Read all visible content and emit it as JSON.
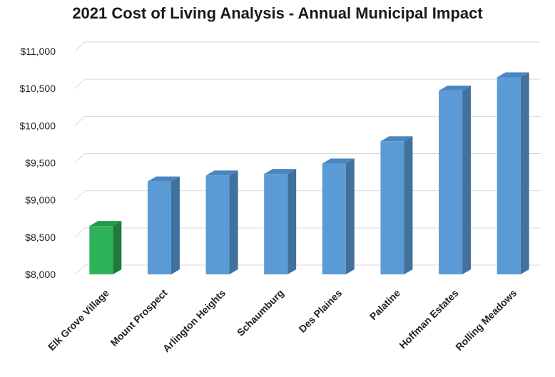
{
  "chart_data": {
    "type": "bar",
    "title": "2021 Cost of Living Analysis - Annual Municipal Impact",
    "xlabel": "",
    "ylabel": "",
    "categories": [
      "Elk Grove Village",
      "Mount Prospect",
      "Arlington Heights",
      "Schaumburg",
      "Des Plaines",
      "Palatine",
      "Hoffman Estates",
      "Rolling Meadows"
    ],
    "values": [
      8650,
      9250,
      9330,
      9350,
      9490,
      9790,
      10470,
      10650
    ],
    "ylim": [
      8000,
      11000
    ],
    "yticks": [
      8000,
      8500,
      9000,
      9500,
      10000,
      10500,
      11000
    ],
    "ytick_labels": [
      "$8,000",
      "$8,500",
      "$9,000",
      "$9,500",
      "$10,000",
      "$10,500",
      "$11,000"
    ],
    "grid": true,
    "style": "3d-column",
    "colors": {
      "default_bar": "#5b9bd5",
      "default_bar_side": "#41719c",
      "default_bar_top": "#4a86c0",
      "highlight_bar": "#2eb35a",
      "highlight_bar_side": "#1f7a3c",
      "highlight_bar_top": "#239a49",
      "gridline": "#d9d9d9"
    },
    "highlight_category": "Elk Grove Village"
  }
}
